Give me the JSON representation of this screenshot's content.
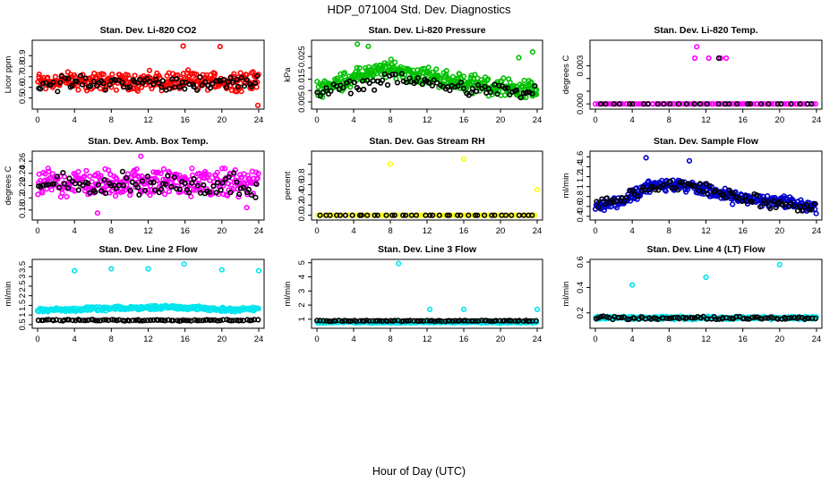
{
  "figure": {
    "title": "HDP_071004  Std. Dev. Diagnostics",
    "xlabel": "Hour of Day (UTC)"
  },
  "chart_data": [
    {
      "type": "scatter",
      "title": "Stan. Dev. Li-820 CO2",
      "ylabel": "Licor ppm",
      "xlim": [
        0,
        24
      ],
      "ylim": [
        0.42,
        1.02
      ],
      "xticks": [
        0,
        4,
        8,
        12,
        16,
        20,
        24
      ],
      "yticks": [
        0.5,
        0.6,
        0.7,
        0.8,
        0.9
      ],
      "series": [
        {
          "color": "#ff0000",
          "pattern": {
            "base": 0.66,
            "amp": 0.09,
            "trend": [],
            "n": 290
          },
          "outliers": [
            [
              15.8,
              0.99
            ],
            [
              19.8,
              0.985
            ],
            [
              23.9,
              0.43
            ]
          ]
        },
        {
          "color": "#000000",
          "pattern": {
            "base": 0.64,
            "amp": 0.07,
            "trend": [],
            "n": 85
          }
        }
      ]
    },
    {
      "type": "scatter",
      "title": "Stan. Dev. Li-820 Pressure",
      "ylabel": "kPa",
      "xlim": [
        0,
        24
      ],
      "ylim": [
        0.003,
        0.031
      ],
      "xticks": [
        0,
        4,
        8,
        12,
        16,
        20,
        24
      ],
      "yticks": [
        0.005,
        0.01,
        0.015,
        0.02,
        0.025
      ],
      "yticklabels": [
        "0.005",
        "",
        "0.015",
        "",
        "0.025"
      ],
      "series": [
        {
          "color": "#00c000",
          "pattern": {
            "base": 0.012,
            "amp": 0.004,
            "trend": [
              [
                0,
                0.0105
              ],
              [
                4,
                0.016
              ],
              [
                8,
                0.0195
              ],
              [
                12,
                0.0165
              ],
              [
                16,
                0.0135
              ],
              [
                20,
                0.0115
              ],
              [
                24,
                0.0105
              ]
            ],
            "n": 320
          },
          "outliers": [
            [
              4.4,
              0.0305
            ],
            [
              5.6,
              0.0295
            ],
            [
              22.0,
              0.0245
            ],
            [
              23.5,
              0.027
            ]
          ]
        },
        {
          "color": "#000000",
          "pattern": {
            "base": 0.011,
            "amp": 0.003,
            "trend": [
              [
                0,
                0.0085
              ],
              [
                8,
                0.015
              ],
              [
                16,
                0.0115
              ],
              [
                24,
                0.0085
              ]
            ],
            "n": 85
          }
        }
      ]
    },
    {
      "type": "scatter",
      "title": "Stan. Dev. Li-820 Temp.",
      "ylabel": "degrees C",
      "xlim": [
        0,
        24
      ],
      "ylim": [
        -0.0002,
        0.0048
      ],
      "xticks": [
        0,
        4,
        8,
        12,
        16,
        20,
        24
      ],
      "yticks": [
        0.0,
        0.001,
        0.002,
        0.003
      ],
      "yticklabels": [
        "0.000",
        "",
        "",
        "0.003"
      ],
      "series": [
        {
          "color": "#ff00ff",
          "pattern": {
            "base": 0.0,
            "amp": 0.0,
            "trend": [],
            "n": 100
          },
          "outliers": [
            [
              11.0,
              0.0045
            ],
            [
              10.8,
              0.0036
            ],
            [
              12.3,
              0.0036
            ],
            [
              13.6,
              0.0036
            ],
            [
              14.2,
              0.0036
            ]
          ]
        },
        {
          "color": "#000000",
          "pattern": {
            "base": 0.0,
            "amp": 0.0,
            "trend": [],
            "n": 30
          },
          "outliers": [
            [
              13.4,
              0.0036
            ]
          ]
        }
      ]
    },
    {
      "type": "scatter",
      "title": "Stan. Dev. Amb. Box Temp.",
      "ylabel": "degrees C",
      "xlim": [
        0,
        24
      ],
      "ylim": [
        0.168,
        0.272
      ],
      "xticks": [
        0,
        4,
        8,
        12,
        16,
        20,
        24
      ],
      "yticks": [
        0.18,
        0.2,
        0.22,
        0.24,
        0.26
      ],
      "series": [
        {
          "color": "#ff00ff",
          "pattern": {
            "base": 0.225,
            "amp": 0.022,
            "trend": [],
            "n": 300
          },
          "outliers": [
            [
              6.5,
              0.175
            ],
            [
              11.2,
              0.268
            ],
            [
              22.7,
              0.184
            ]
          ]
        },
        {
          "color": "#000000",
          "pattern": {
            "base": 0.222,
            "amp": 0.02,
            "trend": [],
            "n": 85
          }
        }
      ]
    },
    {
      "type": "scatter",
      "title": "Stan. Dev. Gas Stream RH",
      "ylabel": "percent",
      "xlim": [
        0,
        24
      ],
      "ylim": [
        -0.04,
        1.2
      ],
      "xticks": [
        0,
        4,
        8,
        12,
        16,
        20,
        24
      ],
      "yticks": [
        0.0,
        0.2,
        0.4,
        0.6,
        0.8,
        1.0
      ],
      "yticklabels": [
        "0.0",
        "0.2",
        "0.4",
        "0.6",
        "0.8",
        ""
      ],
      "series": [
        {
          "color": "#ffff00",
          "pattern": {
            "base": 0.0,
            "amp": 0.0,
            "trend": [],
            "n": 90
          },
          "outliers": [
            [
              8.0,
              1.0
            ],
            [
              16.0,
              1.1
            ],
            [
              24.0,
              0.5
            ]
          ]
        },
        {
          "color": "#000000",
          "pattern": {
            "base": 0.0,
            "amp": 0.0,
            "trend": [],
            "n": 40
          }
        }
      ]
    },
    {
      "type": "scatter",
      "title": "Stan. Dev. Sample Flow",
      "ylabel": "ml/min",
      "xlim": [
        0,
        24
      ],
      "ylim": [
        0.38,
        1.66
      ],
      "xticks": [
        0,
        4,
        8,
        12,
        16,
        20,
        24
      ],
      "yticks": [
        0.4,
        0.6,
        0.8,
        1.0,
        1.2,
        1.4,
        1.6
      ],
      "series": [
        {
          "color": "#0000cc",
          "pattern": {
            "base": 0.8,
            "amp": 0.13,
            "trend": [
              [
                0,
                0.62
              ],
              [
                3,
                0.72
              ],
              [
                6,
                1.02
              ],
              [
                9,
                1.05
              ],
              [
                12,
                0.92
              ],
              [
                15,
                0.78
              ],
              [
                18,
                0.72
              ],
              [
                21,
                0.7
              ],
              [
                24,
                0.55
              ]
            ],
            "n": 330
          },
          "outliers": [
            [
              5.5,
              1.58
            ],
            [
              10.2,
              1.52
            ]
          ]
        },
        {
          "color": "#000000",
          "pattern": {
            "base": 0.8,
            "amp": 0.12,
            "trend": [
              [
                0,
                0.6
              ],
              [
                6,
                0.98
              ],
              [
                10,
                1.05
              ],
              [
                16,
                0.75
              ],
              [
                24,
                0.55
              ]
            ],
            "n": 85
          }
        }
      ]
    },
    {
      "type": "scatter",
      "title": "Stan. Dev. Line 2 Flow",
      "ylabel": "ml/min",
      "xlim": [
        0,
        24
      ],
      "ylim": [
        0.45,
        3.75
      ],
      "xticks": [
        0,
        4,
        8,
        12,
        16,
        20,
        24
      ],
      "yticks": [
        0.5,
        1.0,
        1.5,
        2.0,
        2.5,
        3.0,
        3.5
      ],
      "series": [
        {
          "color": "#00e5ee",
          "pattern": {
            "base": 1.3,
            "amp": 0.1,
            "trend": [
              [
                0,
                1.25
              ],
              [
                8,
                1.33
              ],
              [
                15,
                1.42
              ],
              [
                20,
                1.28
              ],
              [
                24,
                1.3
              ]
            ],
            "n": 290
          },
          "outliers": [
            [
              4.0,
              3.3
            ],
            [
              8.0,
              3.4
            ],
            [
              12.0,
              3.4
            ],
            [
              15.9,
              3.65
            ],
            [
              20.0,
              3.35
            ],
            [
              24.0,
              3.3
            ]
          ]
        },
        {
          "color": "#000000",
          "pattern": {
            "base": 0.73,
            "amp": 0.04,
            "trend": [],
            "n": 85
          }
        }
      ]
    },
    {
      "type": "scatter",
      "title": "Stan. Dev. Line 3 Flow",
      "ylabel": "ml/min",
      "xlim": [
        0,
        24
      ],
      "ylim": [
        0.55,
        5.05
      ],
      "xticks": [
        0,
        4,
        8,
        12,
        16,
        20,
        24
      ],
      "yticks": [
        1,
        2,
        3,
        4,
        5
      ],
      "series": [
        {
          "color": "#00e5ee",
          "pattern": {
            "base": 0.78,
            "amp": 0.06,
            "trend": [],
            "n": 200
          },
          "outliers": [
            [
              8.9,
              4.95
            ],
            [
              12.3,
              1.7
            ],
            [
              16.0,
              1.7
            ],
            [
              24.0,
              1.7
            ]
          ]
        },
        {
          "color": "#000000",
          "pattern": {
            "base": 0.88,
            "amp": 0.04,
            "trend": [],
            "n": 85
          }
        }
      ]
    },
    {
      "type": "scatter",
      "title": "Stan. Dev. Line 4 (LT) Flow",
      "ylabel": "ml/min",
      "xlim": [
        0,
        24
      ],
      "ylim": [
        0.1,
        0.6
      ],
      "xticks": [
        0,
        4,
        8,
        12,
        16,
        20,
        24
      ],
      "yticks": [
        0.2,
        0.4,
        0.6
      ],
      "series": [
        {
          "color": "#00e5ee",
          "pattern": {
            "base": 0.16,
            "amp": 0.012,
            "trend": [],
            "n": 250
          },
          "outliers": [
            [
              4.0,
              0.42
            ],
            [
              12.0,
              0.48
            ],
            [
              20.0,
              0.58
            ]
          ]
        },
        {
          "color": "#000000",
          "pattern": {
            "base": 0.16,
            "amp": 0.012,
            "trend": [],
            "n": 85
          }
        }
      ]
    }
  ]
}
